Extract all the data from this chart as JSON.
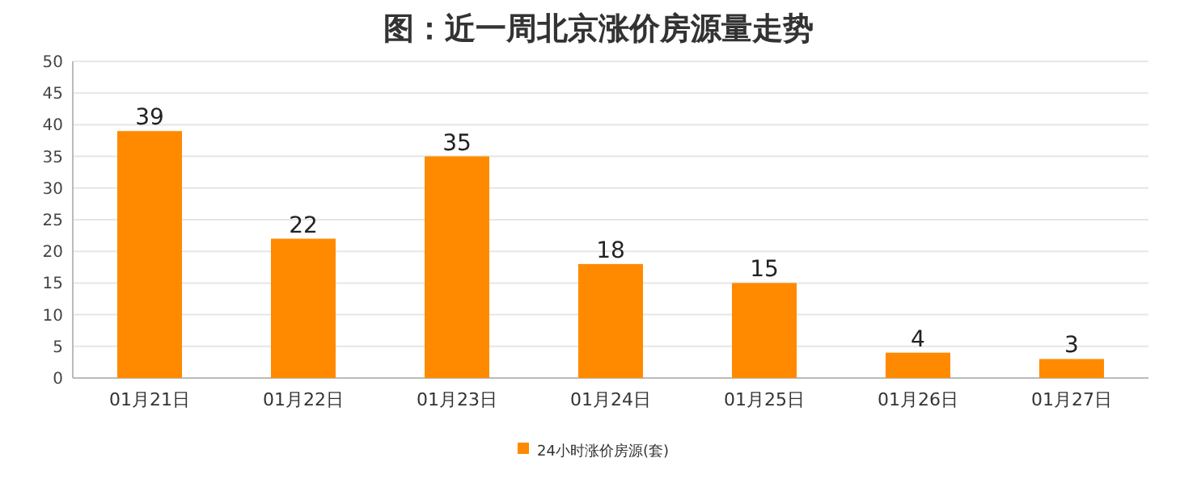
{
  "chart_data": {
    "type": "bar",
    "title": "图：近一周北京涨价房源量走势",
    "categories": [
      "01月21日",
      "01月22日",
      "01月23日",
      "01月24日",
      "01月25日",
      "01月26日",
      "01月27日"
    ],
    "series": [
      {
        "name": "24小时涨价房源(套)",
        "color": "#ff8a00",
        "values": [
          39,
          22,
          35,
          18,
          15,
          4,
          3
        ]
      }
    ],
    "ylim": [
      0,
      50
    ],
    "yticks": [
      0,
      5,
      10,
      15,
      20,
      25,
      30,
      35,
      40,
      45,
      50
    ],
    "grid": "y",
    "legend": "bottom",
    "data_labels": true
  }
}
